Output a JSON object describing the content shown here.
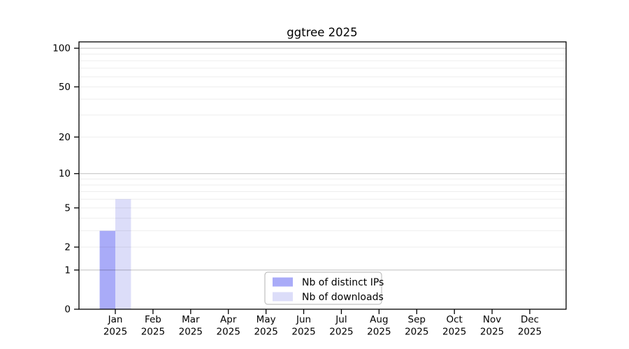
{
  "chart_data": {
    "type": "bar",
    "title": "ggtree 2025",
    "x_months": [
      "Jan",
      "Feb",
      "Mar",
      "Apr",
      "May",
      "Jun",
      "Jul",
      "Aug",
      "Sep",
      "Oct",
      "Nov",
      "Dec"
    ],
    "x_years": [
      "2025",
      "2025",
      "2025",
      "2025",
      "2025",
      "2025",
      "2025",
      "2025",
      "2025",
      "2025",
      "2025",
      "2025"
    ],
    "series": [
      {
        "name": "Nb of distinct IPs",
        "color": "#a9abf8",
        "values": [
          3,
          0,
          0,
          0,
          0,
          0,
          0,
          0,
          0,
          0,
          0,
          0
        ]
      },
      {
        "name": "Nb of downloads",
        "color": "#dcddf9",
        "values": [
          6,
          0,
          0,
          0,
          0,
          0,
          0,
          0,
          0,
          0,
          0,
          0
        ]
      }
    ],
    "yscale": "log1p",
    "ylim": [
      0,
      112
    ],
    "ytick_labels": [
      "0",
      "1",
      "2",
      "5",
      "10",
      "20",
      "50",
      "100"
    ],
    "ytick_values": [
      0,
      1,
      2,
      5,
      10,
      20,
      50,
      100
    ],
    "grid": {
      "major_values": [
        1,
        10,
        100
      ],
      "minor_values": [
        2,
        3,
        4,
        5,
        6,
        7,
        8,
        9,
        20,
        30,
        40,
        50,
        60,
        70,
        80,
        90
      ],
      "major_color": "rgba(0,0,0,0.25)",
      "minor_color": "rgba(0,0,0,0.07)"
    },
    "legend": {
      "position": "inside-bottom-center",
      "entries": [
        "Nb of distinct IPs",
        "Nb of downloads"
      ]
    },
    "background": "#ffffff",
    "axis_color": "#000000"
  }
}
